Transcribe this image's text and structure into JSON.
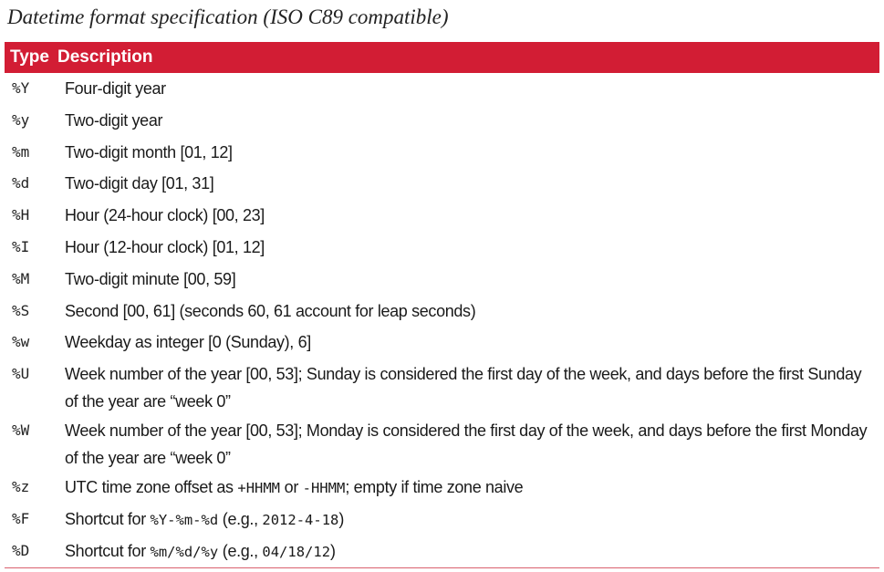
{
  "caption": "Datetime format specification (ISO C89 compatible)",
  "table": {
    "headers": {
      "type": "Type",
      "description": "Description"
    },
    "rows": [
      {
        "code": "%Y",
        "desc": "Four-digit year"
      },
      {
        "code": "%y",
        "desc": "Two-digit year"
      },
      {
        "code": "%m",
        "desc": "Two-digit month [01, 12]"
      },
      {
        "code": "%d",
        "desc": "Two-digit day [01, 31]"
      },
      {
        "code": "%H",
        "desc": "Hour (24-hour clock) [00, 23]"
      },
      {
        "code": "%I",
        "desc": "Hour (12-hour clock) [01, 12]"
      },
      {
        "code": "%M",
        "desc": "Two-digit minute [00, 59]"
      },
      {
        "code": "%S",
        "desc": "Second [00, 61] (seconds 60, 61 account for leap seconds)"
      },
      {
        "code": "%w",
        "desc": "Weekday as integer [0 (Sunday), 6]"
      },
      {
        "code": "%U",
        "desc": "Week number of the year [00, 53]; Sunday is considered the first day of the week, and days before the first Sunday of the year are “week 0”"
      },
      {
        "code": "%W",
        "desc": "Week number of the year [00, 53]; Monday is considered the first day of the week, and days before the first Monday of the year are “week 0”"
      },
      {
        "code": "%z",
        "desc_parts": [
          "UTC time zone offset as ",
          "+HHMM",
          " or ",
          "-HHMM",
          "; empty if time zone naive"
        ]
      },
      {
        "code": "%F",
        "desc_parts": [
          "Shortcut for ",
          "%Y-%m-%d",
          " (e.g., ",
          "2012-4-18",
          ")"
        ]
      },
      {
        "code": "%D",
        "desc_parts": [
          "Shortcut for ",
          "%m/%d/%y",
          " (e.g., ",
          "04/18/12",
          ")"
        ]
      }
    ]
  }
}
